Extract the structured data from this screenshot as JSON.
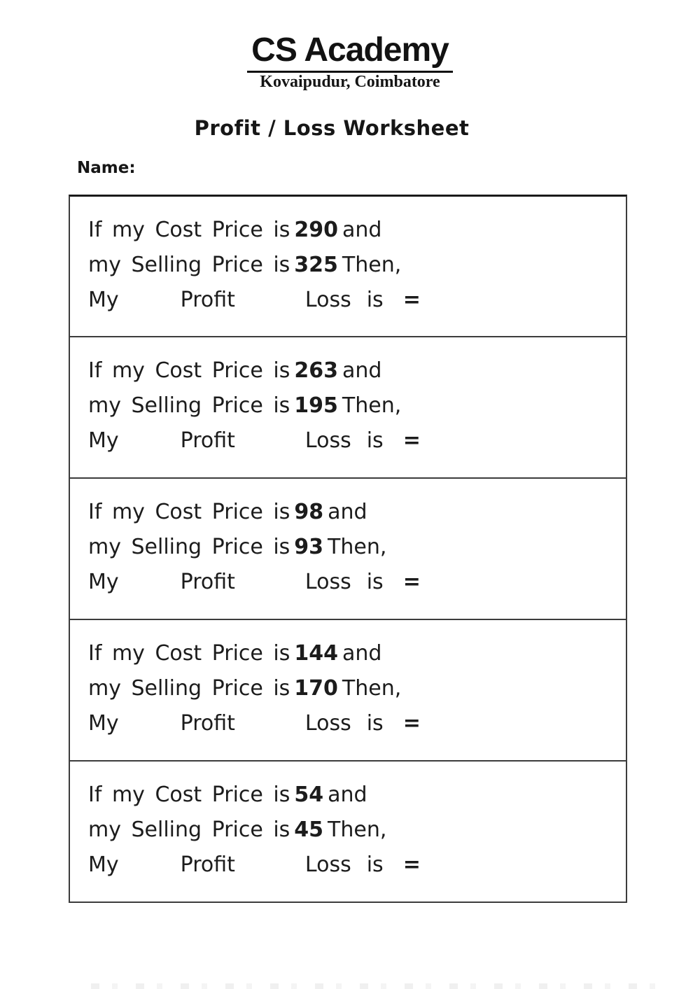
{
  "header": {
    "logo_title": "CS Academy",
    "logo_subtitle": "Kovaipudur, Coimbatore"
  },
  "worksheet": {
    "title": "Profit / Loss Worksheet",
    "name_label": "Name:"
  },
  "strings": {
    "line1_prefix": "If my Cost Price is",
    "line1_suffix": "and",
    "line2_prefix": "my Selling Price is",
    "line2_suffix": "Then,",
    "my": "My",
    "profit": "Profit",
    "loss": "Loss",
    "is": "is",
    "equals": "="
  },
  "problems": [
    {
      "cost_price": "290",
      "selling_price": "325"
    },
    {
      "cost_price": "263",
      "selling_price": "195"
    },
    {
      "cost_price": "98",
      "selling_price": "93"
    },
    {
      "cost_price": "144",
      "selling_price": "170"
    },
    {
      "cost_price": "54",
      "selling_price": "45"
    }
  ]
}
